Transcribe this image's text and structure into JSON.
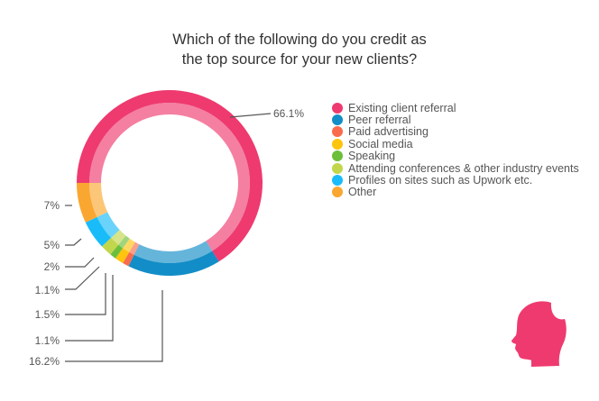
{
  "chart_data": {
    "type": "pie",
    "variant": "donut",
    "title": "Which of the following do you credit as the top source for your new clients?",
    "title_lines": [
      "Which of the following do you credit as",
      "the top source for your new clients?"
    ],
    "categories": [
      "Existing client referral",
      "Peer referral",
      "Paid advertising",
      "Social media",
      "Speaking",
      "Attending conferences & other industry events",
      "Profiles on sites such as Upwork etc.",
      "Other"
    ],
    "values": [
      66.1,
      16.2,
      1.1,
      1.5,
      1.1,
      2,
      5,
      7
    ],
    "data_labels": [
      "66.1%",
      "16.2%",
      "1.1%",
      "1.5%",
      "1.1%",
      "2%",
      "5%",
      "7%"
    ],
    "colors": [
      "#ee3a6f",
      "#128dc7",
      "#fa6a4d",
      "#fec40e",
      "#6cbf3a",
      "#c2d64c",
      "#19bcf9",
      "#faa731"
    ],
    "legend_position": "right"
  },
  "logo": {
    "icon": "head-silhouette-icon",
    "color": "#ee3a6f"
  }
}
